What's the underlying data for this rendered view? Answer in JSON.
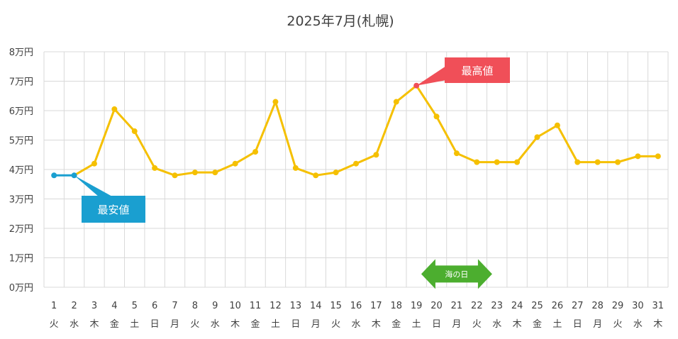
{
  "chart_data": {
    "type": "line",
    "title": "2025年7月(札幌)",
    "xlabel": "",
    "ylabel": "",
    "ylim": [
      0,
      8
    ],
    "y_ticks": [
      0,
      1,
      2,
      3,
      4,
      5,
      6,
      7,
      8
    ],
    "y_unit": "万円",
    "grid": true,
    "categories": [
      "1",
      "2",
      "3",
      "4",
      "5",
      "6",
      "7",
      "8",
      "9",
      "10",
      "11",
      "12",
      "13",
      "14",
      "15",
      "16",
      "17",
      "18",
      "19",
      "20",
      "21",
      "22",
      "23",
      "24",
      "25",
      "26",
      "27",
      "28",
      "29",
      "30",
      "31"
    ],
    "weekdays": [
      "火",
      "水",
      "木",
      "金",
      "土",
      "日",
      "月",
      "火",
      "水",
      "木",
      "金",
      "土",
      "日",
      "月",
      "火",
      "水",
      "木",
      "金",
      "土",
      "日",
      "月",
      "火",
      "水",
      "木",
      "金",
      "土",
      "日",
      "月",
      "火",
      "水",
      "木"
    ],
    "series": [
      {
        "color": "#f5c000",
        "values": [
          3.8,
          3.8,
          4.2,
          6.05,
          5.3,
          4.05,
          3.8,
          3.9,
          3.9,
          4.2,
          4.6,
          6.3,
          4.05,
          3.8,
          3.9,
          4.2,
          4.5,
          6.3,
          6.85,
          5.8,
          4.55,
          4.25,
          4.25,
          4.25,
          5.1,
          5.5,
          4.25,
          4.25,
          4.25,
          4.45,
          4.45
        ]
      }
    ],
    "annotations": {
      "lowest": {
        "label": "最安値",
        "days": [
          1,
          2
        ],
        "color": "#1a9fd0"
      },
      "highest": {
        "label": "最高値",
        "day": 19,
        "color": "#f04f58"
      },
      "holiday": {
        "label": "海の日",
        "day": 21,
        "color": "#4cae2f"
      }
    }
  }
}
